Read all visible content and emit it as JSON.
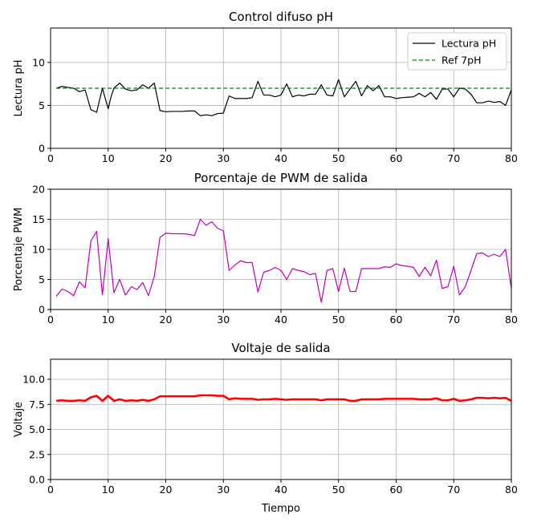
{
  "colors": {
    "ph_line": "#000000",
    "ref_line": "#008000",
    "pwm_line": "#c000c0",
    "volt_line": "#ff0000",
    "grid": "#b0b0b0"
  },
  "chart_data": [
    {
      "type": "line",
      "title": "Control difuso pH",
      "xlabel": "",
      "ylabel": "Lectura pH",
      "xlim": [
        0,
        80
      ],
      "ylim": [
        0,
        14
      ],
      "xticks": [
        0,
        10,
        20,
        30,
        40,
        50,
        60,
        70,
        80
      ],
      "yticks": [
        0,
        5,
        10
      ],
      "grid": true,
      "legend": "top-right",
      "series": [
        {
          "name": "Lectura pH",
          "x": [
            1,
            2,
            3,
            4,
            5,
            6,
            7,
            8,
            9,
            10,
            10.5,
            11,
            12,
            13,
            14,
            15,
            16,
            17,
            18,
            19,
            20,
            21,
            22,
            23,
            24,
            25,
            26,
            27,
            28,
            29,
            30,
            31,
            32,
            33,
            34,
            35,
            36,
            37,
            38,
            39,
            40,
            41,
            42,
            43,
            44,
            45,
            46,
            47,
            48,
            49,
            50,
            51,
            52,
            53,
            54,
            55,
            56,
            57,
            58,
            59,
            60,
            61,
            62,
            63,
            64,
            65,
            66,
            67,
            68,
            69,
            70,
            71,
            72,
            73,
            74,
            75,
            76,
            77,
            78,
            79,
            80
          ],
          "y": [
            7.0,
            7.2,
            7.1,
            7.0,
            6.6,
            6.8,
            4.5,
            4.2,
            7.0,
            4.6,
            6.0,
            7.0,
            7.6,
            6.9,
            6.7,
            6.8,
            7.4,
            7.0,
            7.6,
            4.4,
            4.25,
            4.3,
            4.3,
            4.3,
            4.35,
            4.35,
            3.8,
            3.9,
            3.8,
            4.05,
            4.1,
            6.1,
            5.8,
            5.8,
            5.8,
            5.9,
            7.8,
            6.2,
            6.2,
            6.0,
            6.2,
            7.5,
            6.0,
            6.2,
            6.1,
            6.3,
            6.3,
            7.4,
            6.2,
            6.1,
            8.0,
            6.0,
            6.9,
            7.8,
            6.1,
            7.3,
            6.7,
            7.3,
            6.0,
            6.0,
            5.8,
            5.9,
            5.95,
            6.0,
            6.4,
            6.0,
            6.5,
            5.7,
            6.9,
            6.9,
            6.0,
            7.0,
            6.9,
            6.3,
            5.3,
            5.3,
            5.5,
            5.35,
            5.45,
            5.0,
            6.8
          ]
        },
        {
          "name": "Ref 7pH",
          "x": [
            1,
            80
          ],
          "y": [
            7,
            7
          ]
        }
      ]
    },
    {
      "type": "line",
      "title": "Porcentaje de PWM de salida",
      "xlabel": "",
      "ylabel": "Porcentaje PWM",
      "xlim": [
        0,
        80
      ],
      "ylim": [
        0,
        20
      ],
      "xticks": [
        0,
        10,
        20,
        30,
        40,
        50,
        60,
        70,
        80
      ],
      "yticks": [
        0,
        5,
        10,
        15,
        20
      ],
      "grid": true,
      "series": [
        {
          "x": [
            1,
            2,
            3,
            4,
            5,
            6,
            7,
            8,
            9,
            10,
            11,
            12,
            13,
            14,
            15,
            16,
            17,
            18,
            19,
            20,
            21,
            22,
            23,
            24,
            25,
            26,
            27,
            28,
            29,
            30,
            31,
            32,
            33,
            34,
            35,
            36,
            37,
            38,
            39,
            40,
            41,
            42,
            43,
            44,
            45,
            46,
            47,
            48,
            49,
            50,
            51,
            52,
            53,
            54,
            55,
            56,
            57,
            58,
            59,
            60,
            61,
            62,
            63,
            64,
            65,
            66,
            67,
            68,
            69,
            70,
            71,
            72,
            73,
            74,
            75,
            76,
            77,
            78,
            79,
            80
          ],
          "y": [
            2.2,
            3.4,
            3.0,
            2.3,
            4.6,
            3.6,
            11.4,
            13.0,
            2.4,
            11.8,
            2.8,
            5.0,
            2.4,
            3.8,
            3.3,
            4.5,
            2.3,
            5.5,
            12.0,
            12.7,
            12.6,
            12.6,
            12.6,
            12.5,
            12.3,
            15.0,
            14.0,
            14.6,
            13.5,
            13.1,
            6.5,
            7.4,
            8.1,
            7.8,
            7.8,
            2.9,
            6.2,
            6.5,
            7.0,
            6.5,
            5.0,
            6.8,
            6.5,
            6.3,
            5.8,
            6.0,
            1.2,
            6.5,
            6.8,
            3.0,
            6.9,
            3.0,
            3.0,
            6.8,
            6.8,
            6.8,
            6.8,
            7.1,
            7.0,
            7.6,
            7.3,
            7.2,
            7.0,
            5.5,
            7.0,
            5.6,
            8.2,
            3.5,
            3.8,
            7.2,
            2.4,
            3.8,
            6.5,
            9.3,
            9.4,
            8.8,
            9.2,
            8.8,
            10.0,
            3.5
          ]
        }
      ]
    },
    {
      "type": "line",
      "title": "Voltaje de salida",
      "xlabel": "Tiempo",
      "ylabel": "Voltaje",
      "xlim": [
        0,
        80
      ],
      "ylim": [
        0,
        12
      ],
      "xticks": [
        0,
        10,
        20,
        30,
        40,
        50,
        60,
        70,
        80
      ],
      "yticks": [
        0.0,
        2.5,
        5.0,
        7.5,
        10.0
      ],
      "yticklabels": [
        "0.0",
        "2.5",
        "5.0",
        "7.5",
        "10.0"
      ],
      "grid": true,
      "series": [
        {
          "x": [
            1,
            2,
            3,
            4,
            5,
            6,
            7,
            8,
            9,
            10,
            11,
            12,
            13,
            14,
            15,
            16,
            17,
            18,
            19,
            20,
            21,
            22,
            23,
            24,
            25,
            26,
            27,
            28,
            29,
            30,
            31,
            32,
            33,
            34,
            35,
            36,
            37,
            38,
            39,
            40,
            41,
            42,
            43,
            44,
            45,
            46,
            47,
            48,
            49,
            50,
            51,
            52,
            53,
            54,
            55,
            56,
            57,
            58,
            59,
            60,
            61,
            62,
            63,
            64,
            65,
            66,
            67,
            68,
            69,
            70,
            71,
            72,
            73,
            74,
            75,
            76,
            77,
            78,
            79,
            80
          ],
          "y": [
            7.85,
            7.9,
            7.85,
            7.85,
            7.9,
            7.85,
            8.2,
            8.35,
            7.85,
            8.35,
            7.85,
            8.0,
            7.85,
            7.9,
            7.85,
            7.95,
            7.85,
            8.0,
            8.3,
            8.3,
            8.3,
            8.3,
            8.3,
            8.3,
            8.3,
            8.4,
            8.4,
            8.4,
            8.35,
            8.35,
            8.0,
            8.1,
            8.05,
            8.05,
            8.05,
            7.95,
            8.0,
            8.0,
            8.05,
            8.0,
            7.95,
            8.0,
            8.0,
            8.0,
            8.0,
            8.0,
            7.9,
            8.0,
            8.0,
            8.0,
            8.0,
            7.85,
            7.85,
            8.0,
            8.0,
            8.0,
            8.0,
            8.05,
            8.05,
            8.05,
            8.05,
            8.05,
            8.05,
            8.0,
            8.0,
            8.0,
            8.1,
            7.9,
            7.9,
            8.05,
            7.85,
            7.9,
            8.0,
            8.15,
            8.15,
            8.1,
            8.15,
            8.1,
            8.15,
            7.85
          ]
        }
      ]
    }
  ]
}
